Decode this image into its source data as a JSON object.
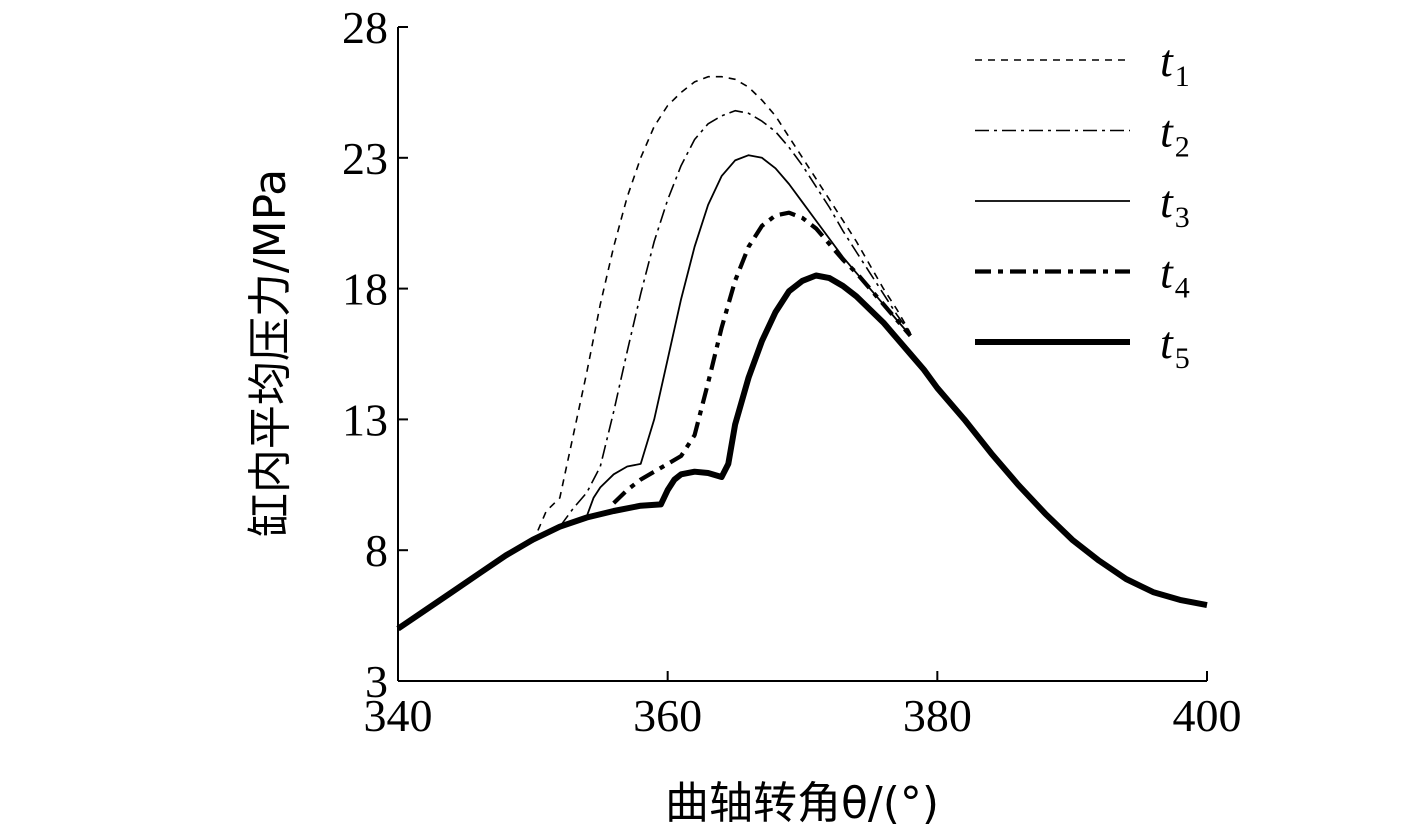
{
  "chart_data": {
    "type": "line",
    "xlabel": "曲轴转角θ/(°)",
    "ylabel": "缸内平均压力/MPa",
    "xlim": [
      340,
      400
    ],
    "ylim": [
      3,
      28
    ],
    "xticks": [
      340,
      360,
      380,
      400
    ],
    "yticks": [
      3,
      8,
      13,
      18,
      23,
      28
    ],
    "legend_position": "top-right",
    "common_curve": {
      "x": [
        340,
        342,
        344,
        346,
        348,
        350,
        352,
        354,
        356,
        358,
        359.5
      ],
      "y": [
        5.0,
        5.7,
        6.4,
        7.1,
        7.8,
        8.4,
        8.9,
        9.25,
        9.5,
        9.7,
        9.75
      ]
    },
    "series": [
      {
        "name": "t",
        "subscript": "1",
        "style": "dashed",
        "x": [
          350,
          351,
          352,
          353,
          354,
          355,
          356,
          357,
          358,
          359,
          360,
          361,
          362,
          363,
          364,
          365,
          366,
          367,
          368,
          369,
          370,
          371,
          372,
          373,
          374,
          375,
          376,
          377,
          378
        ],
        "y": [
          8.3,
          9.5,
          10.0,
          12.4,
          14.8,
          17.4,
          19.6,
          21.5,
          23.0,
          24.2,
          25.0,
          25.5,
          25.9,
          26.1,
          26.1,
          26.0,
          25.7,
          25.2,
          24.6,
          23.8,
          23.0,
          22.2,
          21.4,
          20.6,
          19.8,
          18.9,
          18.0,
          17.2,
          16.3
        ]
      },
      {
        "name": "t",
        "subscript": "2",
        "style": "dashdot-thin",
        "x": [
          352,
          353,
          354,
          355,
          356,
          357,
          358,
          359,
          360,
          361,
          362,
          363,
          364,
          365,
          366,
          367,
          368,
          369,
          370,
          371,
          372,
          373,
          374,
          375,
          376,
          377,
          378
        ],
        "y": [
          8.9,
          9.6,
          10.2,
          11.2,
          13.3,
          15.6,
          17.8,
          19.8,
          21.4,
          22.7,
          23.7,
          24.3,
          24.6,
          24.8,
          24.7,
          24.4,
          24.0,
          23.4,
          22.7,
          21.9,
          21.1,
          20.2,
          19.4,
          18.6,
          17.8,
          17.0,
          16.3
        ]
      },
      {
        "name": "t",
        "subscript": "3",
        "style": "solid",
        "x": [
          354,
          354.5,
          355,
          356,
          357,
          358,
          359,
          360,
          361,
          362,
          363,
          364,
          365,
          366,
          367,
          368,
          369,
          370,
          371,
          372,
          373,
          374,
          375,
          376,
          377,
          378
        ],
        "y": [
          9.3,
          10.0,
          10.4,
          10.9,
          11.2,
          11.3,
          13.0,
          15.3,
          17.6,
          19.6,
          21.2,
          22.3,
          22.9,
          23.1,
          23.0,
          22.6,
          22.0,
          21.3,
          20.6,
          19.9,
          19.2,
          18.6,
          18.0,
          17.4,
          16.8,
          16.2
        ]
      },
      {
        "name": "t",
        "subscript": "4",
        "style": "dashdot-thick",
        "x": [
          356,
          357,
          358,
          359,
          360,
          361,
          362,
          363,
          364,
          365,
          366,
          367,
          368,
          369,
          370,
          371,
          372,
          373,
          374,
          375,
          376,
          377,
          378
        ],
        "y": [
          9.8,
          10.3,
          10.7,
          11.0,
          11.3,
          11.6,
          12.4,
          14.4,
          16.5,
          18.3,
          19.6,
          20.4,
          20.8,
          20.9,
          20.7,
          20.3,
          19.7,
          19.1,
          18.6,
          18.0,
          17.4,
          16.8,
          16.2
        ]
      },
      {
        "name": "t",
        "subscript": "5",
        "style": "thick-solid",
        "x": [
          340,
          342,
          344,
          346,
          348,
          350,
          352,
          354,
          356,
          358,
          359.5,
          360,
          360.5,
          361,
          362,
          363,
          364,
          364.5,
          365,
          366,
          367,
          368,
          369,
          370,
          371,
          372,
          373,
          374,
          375,
          376,
          377,
          378,
          379,
          380,
          382,
          384,
          386,
          388,
          390,
          392,
          394,
          396,
          398,
          400
        ],
        "y": [
          5.0,
          5.7,
          6.4,
          7.1,
          7.8,
          8.4,
          8.9,
          9.25,
          9.5,
          9.7,
          9.75,
          10.3,
          10.7,
          10.9,
          11.0,
          10.95,
          10.8,
          11.3,
          12.8,
          14.6,
          16.0,
          17.1,
          17.9,
          18.3,
          18.5,
          18.4,
          18.1,
          17.7,
          17.2,
          16.7,
          16.1,
          15.5,
          14.9,
          14.2,
          13.0,
          11.7,
          10.5,
          9.4,
          8.4,
          7.6,
          6.9,
          6.4,
          6.1,
          5.9
        ]
      }
    ]
  }
}
